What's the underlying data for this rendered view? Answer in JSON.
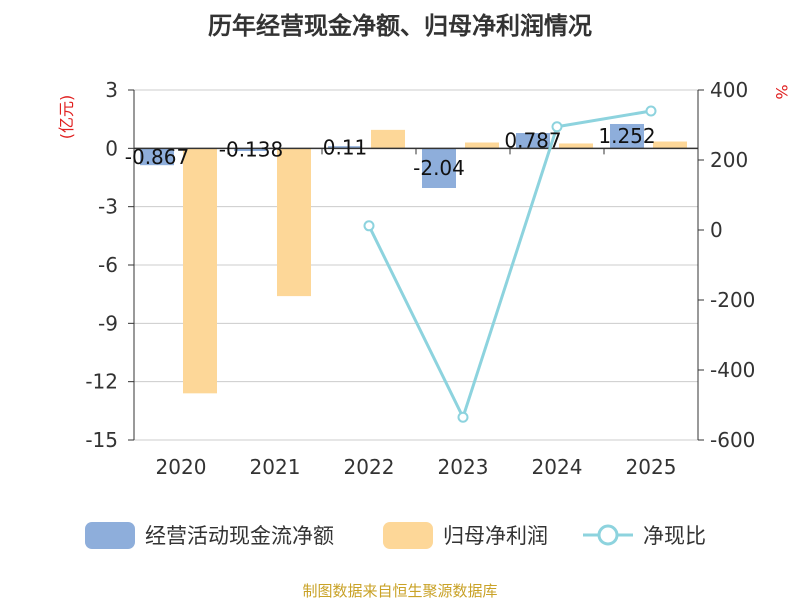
{
  "chart_data": {
    "type": "bar",
    "title": "历年经营现金净额、归母净利润情况",
    "categories": [
      "2020",
      "2021",
      "2022",
      "2023",
      "2024",
      "2025"
    ],
    "series": [
      {
        "name": "经营活动现金流净额",
        "axis": "left",
        "color": "#8eaedb",
        "values": [
          -0.867,
          -0.138,
          0.11,
          -2.04,
          0.787,
          1.252
        ],
        "labels": [
          "-0.867",
          "-0.138",
          "0.11",
          "-2.04",
          "0.787",
          "1.252"
        ]
      },
      {
        "name": "归母净利润",
        "axis": "left",
        "color": "#fdd798",
        "values": [
          -12.6,
          -7.6,
          0.95,
          0.3,
          0.25,
          0.35
        ]
      },
      {
        "name": "净现比",
        "axis": "right",
        "type": "line",
        "color": "#8dd3de",
        "values": [
          null,
          null,
          12,
          -535,
          295,
          340
        ]
      }
    ],
    "y_left": {
      "label": "(亿元)",
      "range": [
        -15,
        3
      ],
      "ticks": [
        3,
        0,
        -3,
        -6,
        -9,
        -12,
        -15
      ],
      "tick_labels": [
        "3",
        "0",
        "-3",
        "-6",
        "-9",
        "-12",
        "-15"
      ]
    },
    "y_right": {
      "label": "%",
      "range": [
        -600,
        400
      ],
      "ticks": [
        400,
        200,
        0,
        -200,
        -400,
        -600
      ],
      "tick_labels": [
        "400",
        "200",
        "0",
        "-200",
        "-400",
        "-600"
      ]
    },
    "legend": {
      "position": "bottom"
    },
    "source": "制图数据来自恒生聚源数据库",
    "colors": {
      "title": "#333333",
      "axis_text": "#333333",
      "grid": "#cccccc",
      "unit": "#e02020",
      "source": "#c9a227"
    }
  }
}
